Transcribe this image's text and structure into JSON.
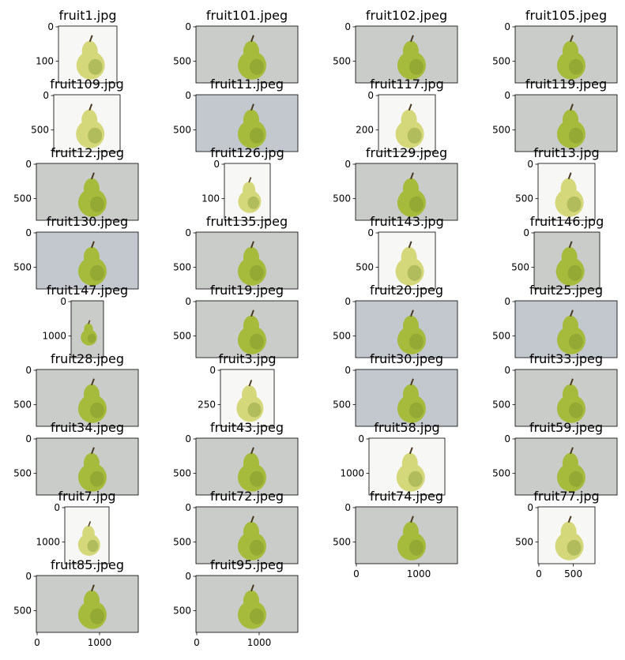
{
  "colors": {
    "pear_yellow": "#d4d87a",
    "pear_green": "#a6bb3c",
    "pear_dark": "#6f8a25",
    "bg_grey": "#c9ccc8",
    "bg_white": "#f7f7f5",
    "bg_bluegrey": "#c3c8cf",
    "stem": "#4a3a22"
  },
  "chart_data": {
    "type": "image-grid",
    "panels": [
      {
        "title": "fruit1.jpg",
        "yticks": [
          "0",
          "100"
        ],
        "xticks": [],
        "bg": "white"
      },
      {
        "title": "fruit101.jpeg",
        "yticks": [
          "0",
          "500"
        ],
        "xticks": [],
        "bg": "grey"
      },
      {
        "title": "fruit102.jpeg",
        "yticks": [
          "0",
          "500"
        ],
        "xticks": [],
        "bg": "grey"
      },
      {
        "title": "fruit105.jpeg",
        "yticks": [
          "0",
          "500"
        ],
        "xticks": [],
        "bg": "grey"
      },
      {
        "title": "fruit109.jpg",
        "yticks": [
          "0",
          "500"
        ],
        "xticks": [],
        "bg": "white"
      },
      {
        "title": "fruit11.jpeg",
        "yticks": [
          "0",
          "500"
        ],
        "xticks": [],
        "bg": "blue"
      },
      {
        "title": "fruit117.jpg",
        "yticks": [
          "0",
          "200"
        ],
        "xticks": [],
        "bg": "white"
      },
      {
        "title": "fruit119.jpeg",
        "yticks": [
          "0",
          "500"
        ],
        "xticks": [],
        "bg": "grey"
      },
      {
        "title": "fruit12.jpeg",
        "yticks": [
          "0",
          "500"
        ],
        "xticks": [],
        "bg": "grey"
      },
      {
        "title": "fruit126.jpg",
        "yticks": [
          "0",
          "100"
        ],
        "xticks": [],
        "bg": "white"
      },
      {
        "title": "fruit129.jpeg",
        "yticks": [
          "0",
          "500"
        ],
        "xticks": [],
        "bg": "grey"
      },
      {
        "title": "fruit13.jpg",
        "yticks": [
          "0",
          "500"
        ],
        "xticks": [],
        "bg": "white"
      },
      {
        "title": "fruit130.jpeg",
        "yticks": [
          "0",
          "500"
        ],
        "xticks": [],
        "bg": "blue"
      },
      {
        "title": "fruit135.jpeg",
        "yticks": [
          "0",
          "500"
        ],
        "xticks": [],
        "bg": "grey"
      },
      {
        "title": "fruit143.jpg",
        "yticks": [
          "0",
          "500"
        ],
        "xticks": [],
        "bg": "white"
      },
      {
        "title": "fruit146.jpg",
        "yticks": [
          "0",
          "500"
        ],
        "xticks": [],
        "bg": "grey"
      },
      {
        "title": "fruit147.jpeg",
        "yticks": [
          "0",
          "1000"
        ],
        "xticks": [],
        "bg": "grey"
      },
      {
        "title": "fruit19.jpeg",
        "yticks": [
          "0",
          "500"
        ],
        "xticks": [],
        "bg": "grey"
      },
      {
        "title": "fruit20.jpeg",
        "yticks": [
          "0",
          "500"
        ],
        "xticks": [],
        "bg": "blue"
      },
      {
        "title": "fruit25.jpeg",
        "yticks": [
          "0",
          "500"
        ],
        "xticks": [],
        "bg": "blue"
      },
      {
        "title": "fruit28.jpeg",
        "yticks": [
          "0",
          "500"
        ],
        "xticks": [],
        "bg": "grey"
      },
      {
        "title": "fruit3.jpg",
        "yticks": [
          "0",
          "250"
        ],
        "xticks": [],
        "bg": "white"
      },
      {
        "title": "fruit30.jpeg",
        "yticks": [
          "0",
          "500"
        ],
        "xticks": [],
        "bg": "blue"
      },
      {
        "title": "fruit33.jpeg",
        "yticks": [
          "0",
          "500"
        ],
        "xticks": [],
        "bg": "grey"
      },
      {
        "title": "fruit34.jpeg",
        "yticks": [
          "0",
          "500"
        ],
        "xticks": [],
        "bg": "grey"
      },
      {
        "title": "fruit43.jpeg",
        "yticks": [
          "0",
          "500"
        ],
        "xticks": [],
        "bg": "grey"
      },
      {
        "title": "fruit58.jpg",
        "yticks": [
          "0",
          "1000"
        ],
        "xticks": [],
        "bg": "white"
      },
      {
        "title": "fruit59.jpeg",
        "yticks": [
          "0",
          "500"
        ],
        "xticks": [],
        "bg": "grey"
      },
      {
        "title": "fruit7.jpg",
        "yticks": [
          "0",
          "1000"
        ],
        "xticks": [],
        "bg": "white"
      },
      {
        "title": "fruit72.jpeg",
        "yticks": [
          "0",
          "500"
        ],
        "xticks": [],
        "bg": "grey"
      },
      {
        "title": "fruit74.jpeg",
        "yticks": [
          "0",
          "500"
        ],
        "xticks": [
          "0",
          "1000"
        ],
        "bg": "grey"
      },
      {
        "title": "fruit77.jpg",
        "yticks": [
          "0",
          "500"
        ],
        "xticks": [
          "0",
          "500"
        ],
        "bg": "white"
      },
      {
        "title": "fruit85.jpeg",
        "yticks": [
          "0",
          "500"
        ],
        "xticks": [
          "0",
          "1000"
        ],
        "bg": "grey"
      },
      {
        "title": "fruit95.jpeg",
        "yticks": [
          "0",
          "500"
        ],
        "xticks": [
          "0",
          "1000"
        ],
        "bg": "grey"
      }
    ]
  }
}
